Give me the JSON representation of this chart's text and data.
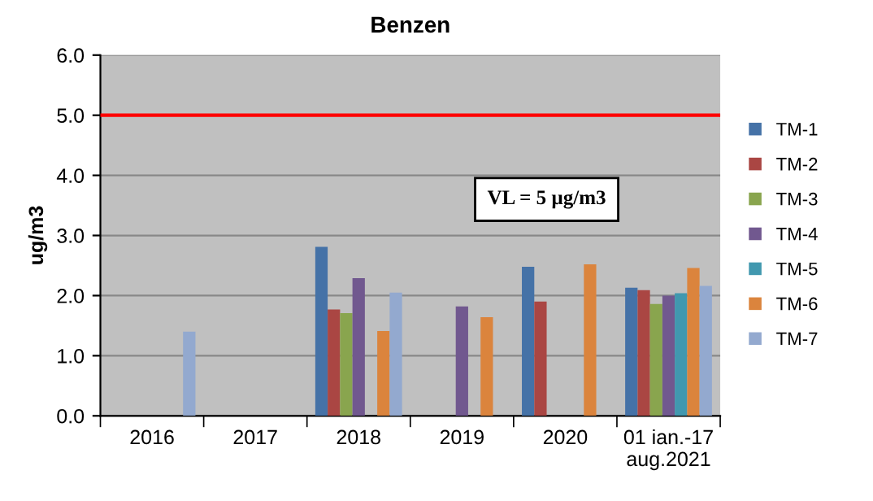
{
  "chart_data": {
    "type": "bar",
    "title": "Benzen",
    "ylabel": "ug/m3",
    "categories": [
      "2016",
      "2017",
      "2018",
      "2019",
      "2020",
      "01 ian.-17\naug.2021"
    ],
    "series": [
      {
        "name": "TM-1",
        "color": "#4572a7",
        "values": [
          null,
          null,
          2.81,
          null,
          2.48,
          2.13
        ]
      },
      {
        "name": "TM-2",
        "color": "#aa4643",
        "values": [
          null,
          null,
          1.77,
          null,
          1.9,
          2.09
        ]
      },
      {
        "name": "TM-3",
        "color": "#89a54e",
        "values": [
          null,
          null,
          1.71,
          null,
          null,
          1.86
        ]
      },
      {
        "name": "TM-4",
        "color": "#71588f",
        "values": [
          null,
          null,
          2.29,
          1.82,
          null,
          2.0
        ]
      },
      {
        "name": "TM-5",
        "color": "#4198af",
        "values": [
          null,
          null,
          null,
          null,
          null,
          2.04
        ]
      },
      {
        "name": "TM-6",
        "color": "#db843d",
        "values": [
          null,
          null,
          1.41,
          1.64,
          2.52,
          2.46
        ]
      },
      {
        "name": "TM-7",
        "color": "#93a9cf",
        "values": [
          1.4,
          null,
          2.05,
          null,
          null,
          2.16
        ]
      }
    ],
    "ylim": [
      0,
      6
    ],
    "yticks": [
      {
        "value": 0,
        "label": "0.0"
      },
      {
        "value": 1,
        "label": "1.0"
      },
      {
        "value": 2,
        "label": "2.0"
      },
      {
        "value": 3,
        "label": "3.0"
      },
      {
        "value": 4,
        "label": "4.0"
      },
      {
        "value": 5,
        "label": "5.0"
      },
      {
        "value": 6,
        "label": "6.0"
      }
    ],
    "ref_lines": [
      {
        "axis": "y",
        "value": 5,
        "color": "#ff0000"
      }
    ],
    "annotations": [
      "VL = 5 µg/m3"
    ],
    "grid": "y",
    "legend": "right"
  }
}
